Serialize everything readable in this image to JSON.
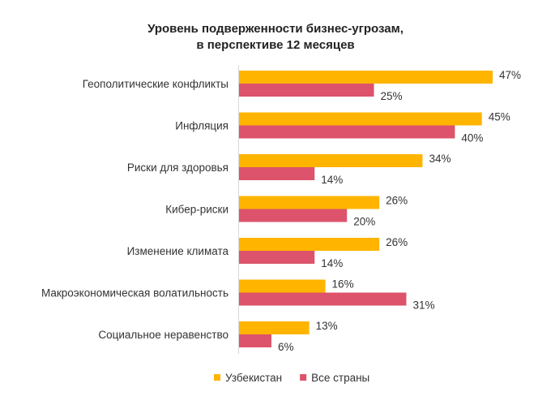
{
  "chart_data": {
    "type": "bar",
    "orientation": "horizontal",
    "title": "Уровень подверженности бизнес-угрозам,\nв перспективе 12 месяцев",
    "title_lines": [
      "Уровень подверженности бизнес-угрозам,",
      "в перспективе 12 месяцев"
    ],
    "categories": [
      "Геополитические конфликты",
      "Инфляция",
      "Риски для здоровья",
      "Кибер-риски",
      "Изменение климата",
      "Макроэкономическая волатильность",
      "Социальное неравенство"
    ],
    "series": [
      {
        "name": "Узбекистан",
        "color": "#FFB400",
        "values": [
          47,
          45,
          34,
          26,
          26,
          16,
          13
        ]
      },
      {
        "name": "Все страны",
        "color": "#DC536B",
        "values": [
          25,
          40,
          14,
          20,
          14,
          31,
          6
        ]
      }
    ],
    "value_suffix": "%",
    "xlim": [
      0,
      50
    ],
    "grid": false,
    "legend_position": "bottom"
  }
}
